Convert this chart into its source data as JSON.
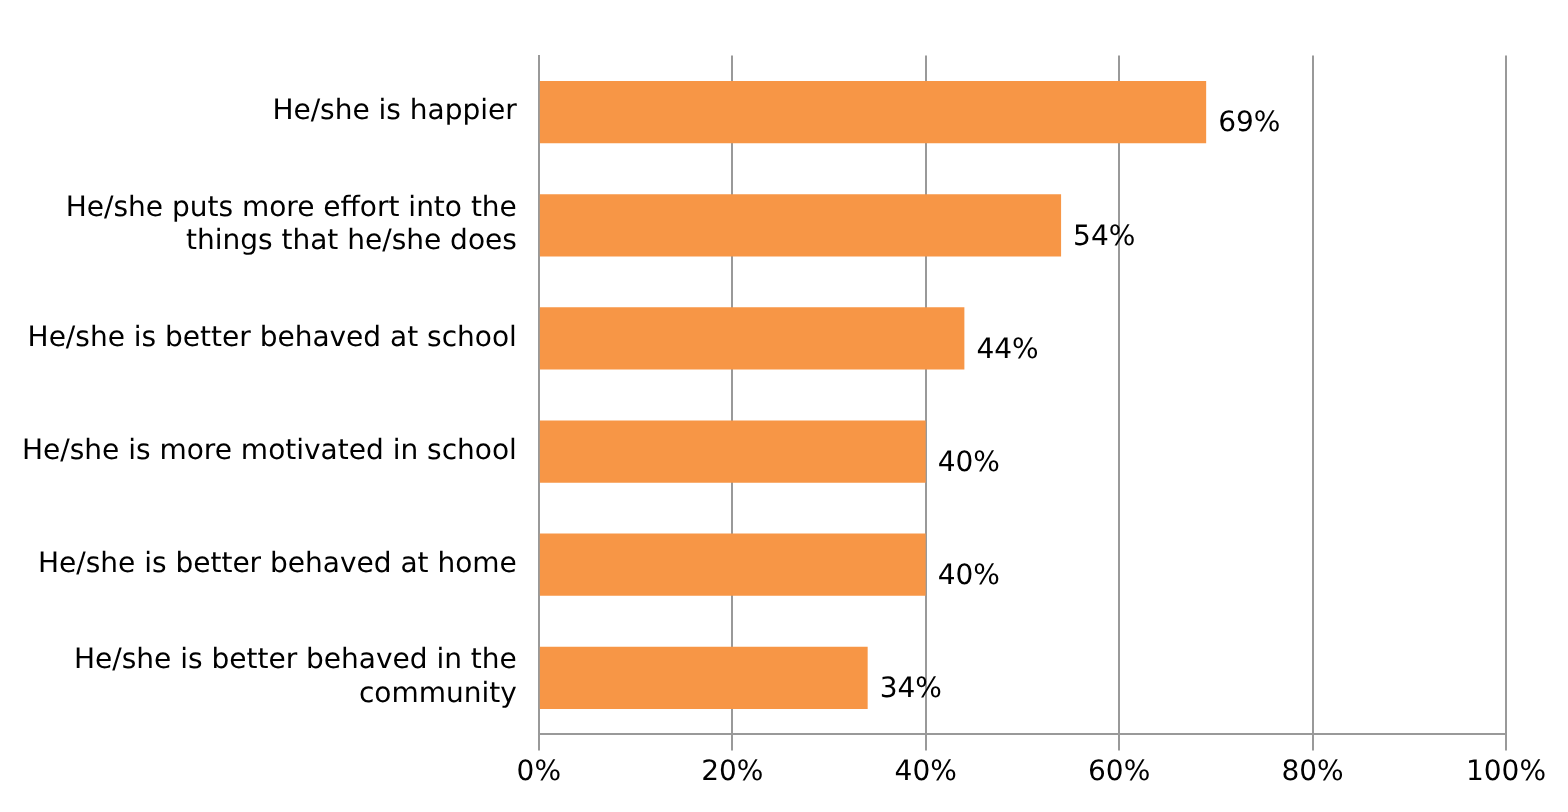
{
  "chart_data": {
    "type": "bar",
    "orientation": "horizontal",
    "categories": [
      "He/she is happier",
      "He/she puts more effort into the things that he/she does",
      "He/she is better behaved at school",
      "He/she is more motivated in school",
      "He/she is better behaved at home",
      "He/she is better behaved in the community"
    ],
    "values": [
      69,
      54,
      44,
      40,
      40,
      34
    ],
    "value_labels": [
      "69%",
      "54%",
      "44%",
      "40%",
      "40%",
      "34%"
    ],
    "color": "#f79646",
    "xlim": [
      0,
      100
    ],
    "xticks": [
      {
        "value": 0,
        "label": "0%"
      },
      {
        "value": 20,
        "label": "20%"
      },
      {
        "value": 40,
        "label": "40%"
      },
      {
        "value": 60,
        "label": "60%"
      },
      {
        "value": 80,
        "label": "80%"
      },
      {
        "value": 100,
        "label": "100%"
      }
    ],
    "grid": "x"
  }
}
